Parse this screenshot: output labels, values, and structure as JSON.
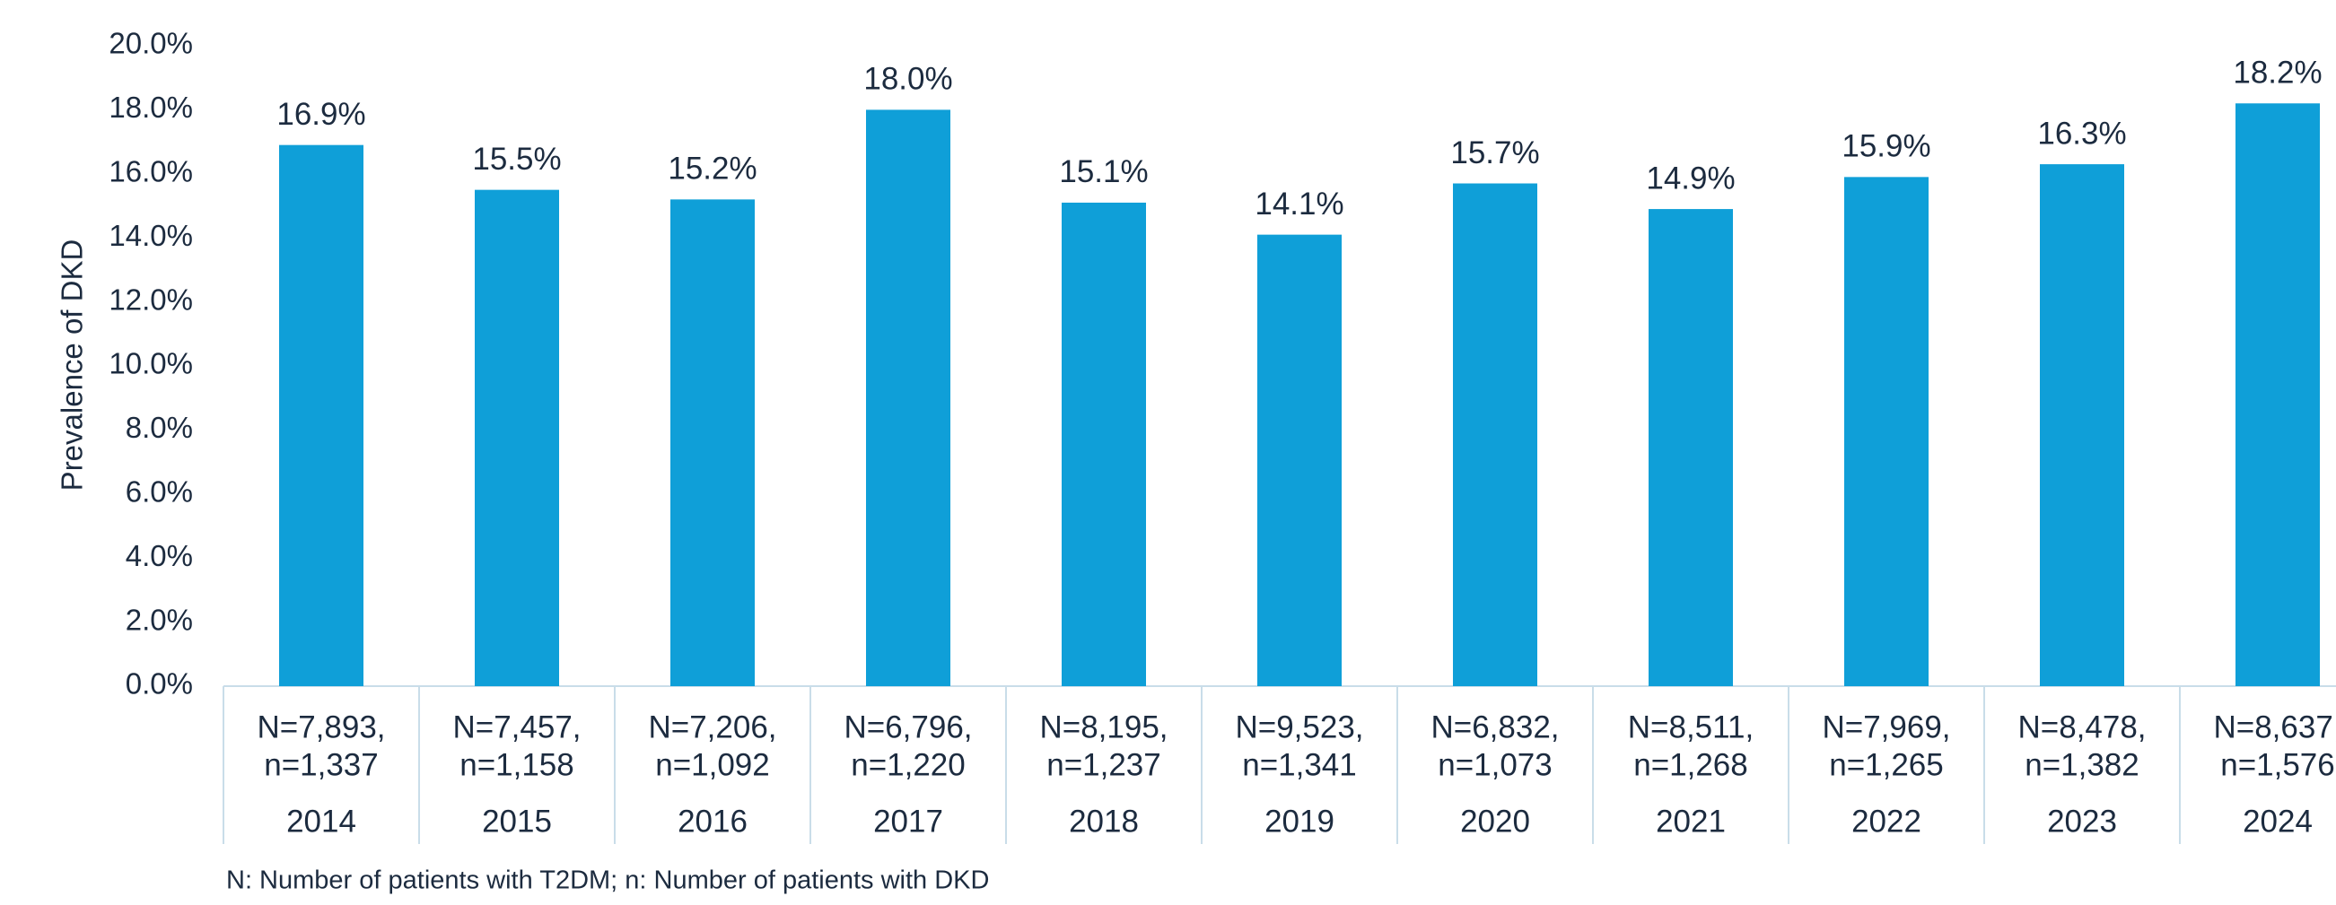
{
  "chart_data": {
    "type": "bar",
    "y_axis_label": "Prevalence of DKD",
    "categories": [
      "2014",
      "2015",
      "2016",
      "2017",
      "2018",
      "2019",
      "2020",
      "2021",
      "2022",
      "2023",
      "2024"
    ],
    "category_details": [
      [
        "N=7,893,",
        "n=1,337"
      ],
      [
        "N=7,457,",
        "n=1,158"
      ],
      [
        "N=7,206,",
        "n=1,092"
      ],
      [
        "N=6,796,",
        "n=1,220"
      ],
      [
        "N=8,195,",
        "n=1,237"
      ],
      [
        "N=9,523,",
        "n=1,341"
      ],
      [
        "N=6,832,",
        "n=1,073"
      ],
      [
        "N=8,511,",
        "n=1,268"
      ],
      [
        "N=7,969,",
        "n=1,265"
      ],
      [
        "N=8,478,",
        "n=1,382"
      ],
      [
        "N=8,637,",
        "n=1,576"
      ]
    ],
    "values": [
      16.9,
      15.5,
      15.2,
      18.0,
      15.1,
      14.1,
      15.7,
      14.9,
      15.9,
      16.3,
      18.2
    ],
    "value_labels": [
      "16.9%",
      "15.5%",
      "15.2%",
      "18.0%",
      "15.1%",
      "14.1%",
      "15.7%",
      "14.9%",
      "15.9%",
      "16.3%",
      "18.2%"
    ],
    "color": "#0f9fd8",
    "ylim": [
      0,
      20
    ],
    "yticks": [
      {
        "value": 0,
        "label": "0.0%"
      },
      {
        "value": 2,
        "label": "2.0%"
      },
      {
        "value": 4,
        "label": "4.0%"
      },
      {
        "value": 6,
        "label": "6.0%"
      },
      {
        "value": 8,
        "label": "8.0%"
      },
      {
        "value": 10,
        "label": "10.0%"
      },
      {
        "value": 12,
        "label": "12.0%"
      },
      {
        "value": 14,
        "label": "14.0%"
      },
      {
        "value": 16,
        "label": "16.0%"
      },
      {
        "value": 18,
        "label": "18.0%"
      },
      {
        "value": 20,
        "label": "20.0%"
      }
    ],
    "grid": false,
    "footnote": "N: Number of patients with T2DM; n: Number of patients with DKD"
  }
}
